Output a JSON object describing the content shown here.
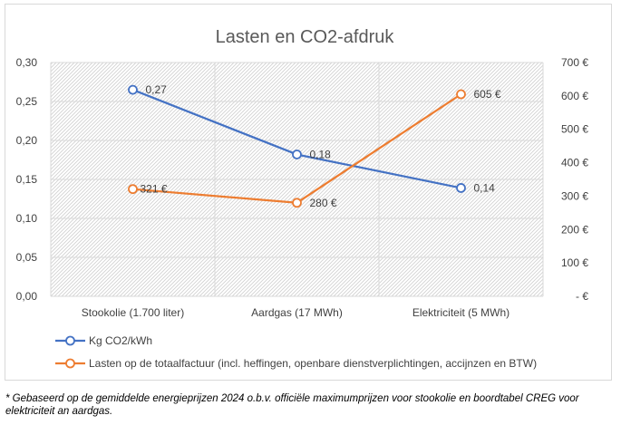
{
  "chart_data": {
    "type": "line",
    "title": "Lasten en CO2-afdruk",
    "categories": [
      "Stookolie (1.700 liter)",
      "Aardgas (17 MWh)",
      "Elektriciteit (5 MWh)"
    ],
    "xlabel": "",
    "ylabel": "",
    "y_left": {
      "range": [
        0,
        0.3
      ],
      "ticks": [
        "0,00",
        "0,05",
        "0,10",
        "0,15",
        "0,20",
        "0,25",
        "0,30"
      ]
    },
    "y_right": {
      "range": [
        0,
        700
      ],
      "ticks": [
        "-  €",
        "100 €",
        "200 €",
        "300 €",
        "400 €",
        "500 €",
        "600 €",
        "700 €"
      ]
    },
    "series": [
      {
        "name": "Kg CO2/kWh",
        "axis": "left",
        "color": "#4472C4",
        "values": [
          0.265,
          0.182,
          0.139
        ],
        "labels": [
          "0,27",
          "0,18",
          "0,14"
        ]
      },
      {
        "name": "Lasten op de totaalfactuur (incl. heffingen, openbare dienstverplichtingen, accijnzen en BTW)",
        "axis": "right",
        "color": "#ED7D31",
        "values": [
          321,
          280,
          605
        ],
        "labels": [
          "321 €",
          "280 €",
          "605 €"
        ]
      }
    ],
    "grid": true,
    "legend_position": "bottom-left"
  },
  "footnote": "* Gebaseerd op de gemiddelde energieprijzen 2024 o.b.v. officiële maximumprijzen voor stookolie en boordtabel CREG voor elektriciteit an aardgas."
}
